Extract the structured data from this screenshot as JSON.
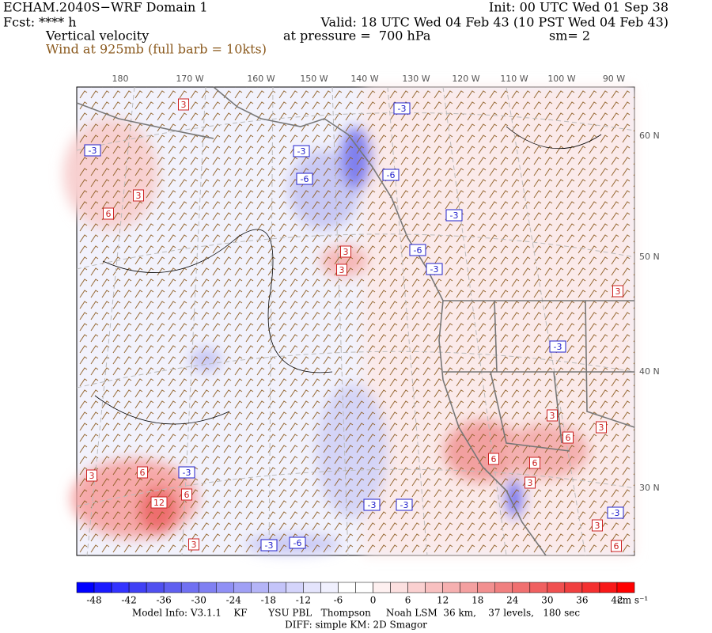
{
  "header": {
    "title": "ECHAM.2040S−WRF Domain 1",
    "forecast": "Fcst: **** h",
    "field": "Vertical velocity",
    "wind": "Wind at 925mb (full barb = 10kts)",
    "init": "Init: 00 UTC Wed 01 Sep 38",
    "valid": "Valid: 18 UTC Wed 04 Feb 43 (10 PST Wed 04 Feb 43)",
    "pressure": "at pressure =  700 hPa",
    "smoothing": "sm= 2"
  },
  "map": {
    "longitude_labels": [
      "180",
      "170 W",
      "160 W",
      "150 W",
      "140 W",
      "130 W",
      "120 W",
      "110 W",
      "100 W",
      "90 W"
    ],
    "latitude_labels": [
      "60 N",
      "50 N",
      "40 N",
      "30 N"
    ],
    "contour_labels": [
      3,
      -3,
      3,
      6,
      -3,
      -6,
      -3,
      -6,
      -3,
      -6,
      -3,
      3,
      3,
      3,
      -3,
      3,
      3,
      6,
      6,
      6,
      3,
      -3,
      3,
      6,
      3,
      6,
      -3,
      6,
      12,
      3,
      -3,
      -6,
      -3,
      -3
    ]
  },
  "colorbar": {
    "ticks": [
      -48,
      -42,
      -36,
      -30,
      -24,
      -18,
      -12,
      -6,
      0,
      6,
      12,
      18,
      24,
      30,
      36,
      42
    ],
    "unit": "cm s⁻¹",
    "colors": [
      "#0000ff",
      "#1a1aff",
      "#3333ff",
      "#4040f5",
      "#5050f0",
      "#6060f0",
      "#7070f2",
      "#8080f2",
      "#9090f5",
      "#a0a0f5",
      "#b4b4f7",
      "#c4c4f9",
      "#d4d4fb",
      "#e4e4fc",
      "#f0f0fe",
      "#ffffff",
      "#ffffff",
      "#fef0f0",
      "#fce0e0",
      "#fad0d0",
      "#f8c0c0",
      "#f6b0b0",
      "#f4a0a0",
      "#f29090",
      "#f08080",
      "#f07070",
      "#f06060",
      "#f05050",
      "#f04040",
      "#f43030",
      "#f81818",
      "#ff0000"
    ]
  },
  "footer": {
    "model_info": "Model Info: V3.1.1    KF       YSU PBL   Thompson     Noah LSM  36 km,    37 levels,   180 sec",
    "diff": "DIFF: simple KM: 2D Smagor"
  }
}
